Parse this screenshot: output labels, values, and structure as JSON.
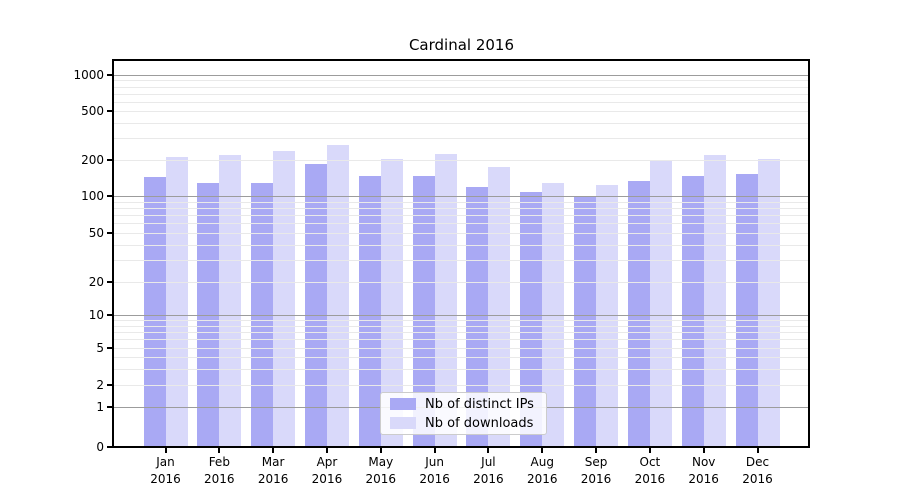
{
  "title": "Cardinal 2016",
  "legend": {
    "items": [
      {
        "label": "Nb of distinct IPs",
        "color": "#a9a9f4"
      },
      {
        "label": "Nb of downloads",
        "color": "#d9d9fa"
      }
    ]
  },
  "chart_data": {
    "type": "bar",
    "title": "Cardinal 2016",
    "categories": [
      "Jan 2016",
      "Feb 2016",
      "Mar 2016",
      "Apr 2016",
      "May 2016",
      "Jun 2016",
      "Jul 2016",
      "Aug 2016",
      "Sep 2016",
      "Oct 2016",
      "Nov 2016",
      "Dec 2016"
    ],
    "series": [
      {
        "name": "Nb of distinct IPs",
        "color": "#a9a9f4",
        "values": [
          145,
          128,
          128,
          185,
          148,
          148,
          120,
          107,
          100,
          134,
          146,
          152
        ]
      },
      {
        "name": "Nb of downloads",
        "color": "#d9d9fa",
        "values": [
          210,
          220,
          237,
          265,
          205,
          222,
          174,
          129,
          124,
          198,
          218,
          205
        ]
      }
    ],
    "xlabel": "",
    "ylabel": "",
    "yscale": "symlog",
    "y_ticks": [
      0,
      1,
      2,
      5,
      10,
      20,
      50,
      100,
      200,
      500,
      1000
    ],
    "ylim": [
      0,
      1200
    ],
    "grid": true,
    "grid_minor": true,
    "legend_position": "lower center"
  },
  "colors": {
    "major_gridline": "#9c9c9c",
    "minor_gridline": "#e9e9e9",
    "axis": "#000000",
    "background": "#ffffff"
  }
}
